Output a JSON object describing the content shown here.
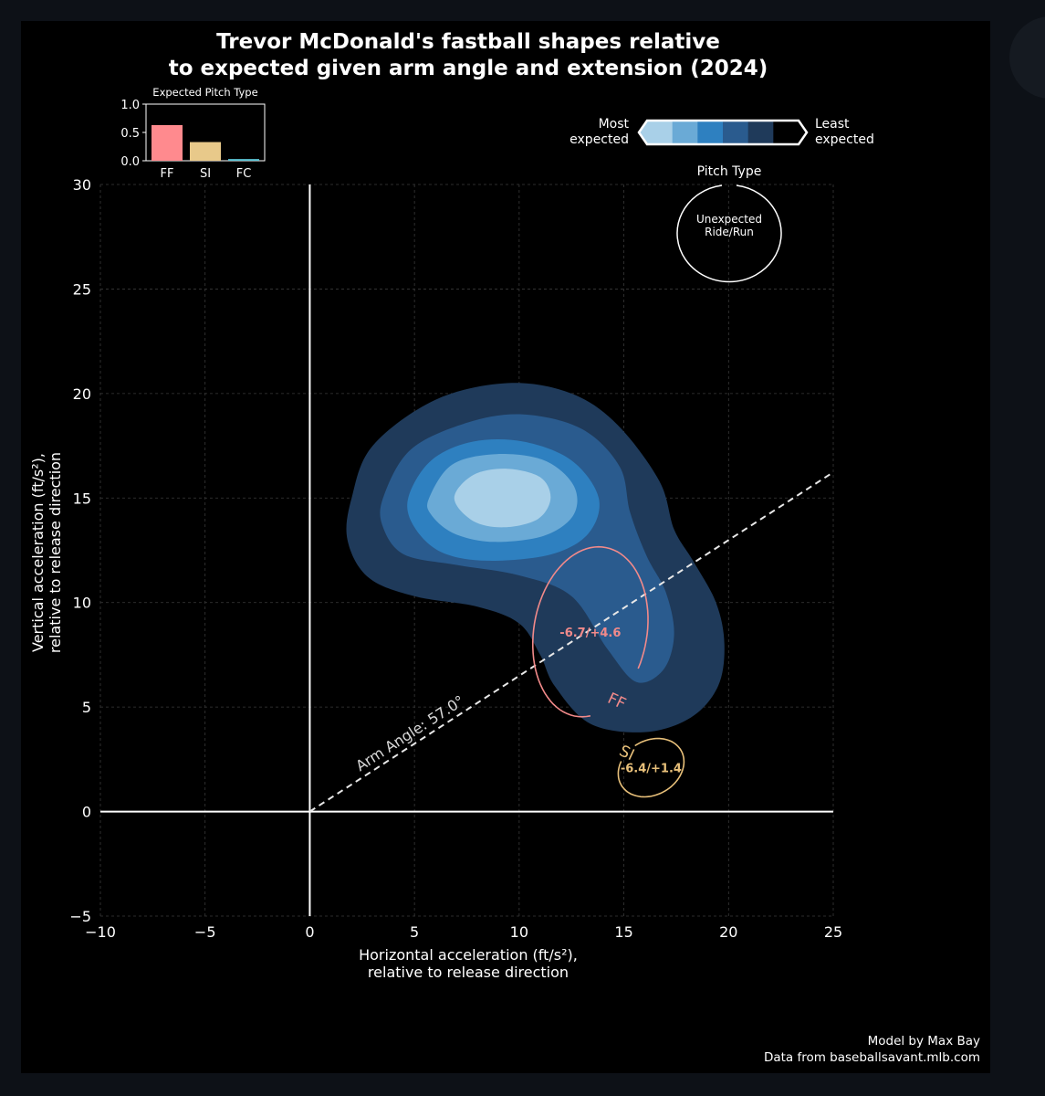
{
  "chart_data": {
    "type": "scatter",
    "title_line1": "Trevor McDonald's fastball shapes relative",
    "title_line2": "to expected given arm angle and extension (2024)",
    "xlabel_line1": "Horizontal acceleration (ft/s²),",
    "xlabel_line2": "relative to release direction",
    "ylabel_line1": "Vertical acceleration (ft/s²),",
    "ylabel_line2": "relative to release direction",
    "xlim": [
      -10,
      25
    ],
    "ylim": [
      -5,
      30
    ],
    "x_ticks": [
      -10,
      -5,
      0,
      5,
      10,
      15,
      20,
      25
    ],
    "y_ticks": [
      -5,
      0,
      5,
      10,
      15,
      20,
      25,
      30
    ],
    "x_tick_labels": [
      "−10",
      "−5",
      "0",
      "5",
      "10",
      "15",
      "20",
      "25"
    ],
    "y_tick_labels": [
      "−5",
      "0",
      "5",
      "10",
      "15",
      "20",
      "25",
      "30"
    ],
    "grid": true,
    "arm_angle_deg": 57.0,
    "arm_angle_label": "Arm Angle: 57.0°",
    "density_contours": [
      {
        "level": 1,
        "color": "#1f3a5a",
        "points": [
          [
            2,
            15
          ],
          [
            3,
            17.5
          ],
          [
            6,
            19.7
          ],
          [
            9.5,
            20.5
          ],
          [
            12.5,
            20
          ],
          [
            14.7,
            18.5
          ],
          [
            16.7,
            15.8
          ],
          [
            17.4,
            13.5
          ],
          [
            18.3,
            12
          ],
          [
            19.4,
            10
          ],
          [
            19.8,
            8
          ],
          [
            19.5,
            6
          ],
          [
            18.2,
            4.5
          ],
          [
            16,
            3.8
          ],
          [
            13.4,
            4.2
          ],
          [
            11.7,
            6
          ],
          [
            11,
            7.5
          ],
          [
            10,
            9
          ],
          [
            8,
            9.8
          ],
          [
            5,
            10.3
          ],
          [
            2.8,
            11.2
          ],
          [
            1.8,
            13
          ]
        ]
      },
      {
        "level": 2,
        "color": "#2a5b8e",
        "points": [
          [
            3.5,
            15
          ],
          [
            4.8,
            17.3
          ],
          [
            7.5,
            18.6
          ],
          [
            10.2,
            19
          ],
          [
            13,
            18.3
          ],
          [
            14.8,
            16.5
          ],
          [
            15.3,
            14.3
          ],
          [
            16.1,
            12.2
          ],
          [
            17,
            10.5
          ],
          [
            17.4,
            8.5
          ],
          [
            16.9,
            6.8
          ],
          [
            15.6,
            6.2
          ],
          [
            14.2,
            7.8
          ],
          [
            12.5,
            10.3
          ],
          [
            10,
            11.3
          ],
          [
            7,
            11.8
          ],
          [
            4.5,
            12.3
          ],
          [
            3.5,
            13.6
          ]
        ]
      },
      {
        "level": 3,
        "color": "#2e80c0",
        "points": [
          [
            4.7,
            15
          ],
          [
            5.8,
            16.8
          ],
          [
            7.8,
            17.7
          ],
          [
            10.2,
            17.7
          ],
          [
            12.5,
            16.8
          ],
          [
            13.8,
            15
          ],
          [
            13.3,
            13.3
          ],
          [
            11.5,
            12.3
          ],
          [
            8.5,
            12
          ],
          [
            6.3,
            12.4
          ],
          [
            5,
            13.6
          ]
        ]
      },
      {
        "level": 4,
        "color": "#6aaad6",
        "points": [
          [
            5.7,
            15
          ],
          [
            6.8,
            16.6
          ],
          [
            8.9,
            17.1
          ],
          [
            11.2,
            16.8
          ],
          [
            12.6,
            15.6
          ],
          [
            12.6,
            14.2
          ],
          [
            11.2,
            13.2
          ],
          [
            8.8,
            12.9
          ],
          [
            6.9,
            13.3
          ],
          [
            5.8,
            14.2
          ]
        ]
      },
      {
        "level": 5,
        "color": "#a9d0e8",
        "points": [
          [
            6.9,
            15
          ],
          [
            7.8,
            16.1
          ],
          [
            9.4,
            16.4
          ],
          [
            11,
            16
          ],
          [
            11.5,
            15
          ],
          [
            10.9,
            14
          ],
          [
            9.3,
            13.6
          ],
          [
            7.8,
            13.9
          ]
        ]
      }
    ],
    "series": [
      {
        "name": "FF",
        "color": "#f28a8a",
        "cx": 13.4,
        "cy": 8.6,
        "value_label": "-6.7/+4.6",
        "rx_deg_width": 5.4,
        "ry_deg_height": 8.2,
        "tilt_deg": 80,
        "gap_start_deg": 110,
        "gap_end_deg": 165
      },
      {
        "name": "SI",
        "color": "#e8c07a",
        "cx": 16.3,
        "cy": 2.1,
        "value_label": "-6.4/+1.4",
        "rx_deg_width": 3.3,
        "ry_deg_height": 2.6,
        "tilt_deg": -60,
        "gap_start_deg": 140,
        "gap_end_deg": 175
      }
    ],
    "inset": {
      "title": "Expected Pitch Type",
      "categories": [
        "FF",
        "SI",
        "FC"
      ],
      "values": [
        0.63,
        0.33,
        0.03
      ],
      "colors": [
        "#ff8a8e",
        "#e8c98a",
        "#5dc8d8"
      ],
      "y_ticks": [
        "0.0",
        "0.5",
        "1.0"
      ]
    },
    "colorbar": {
      "left_label_line1": "Most",
      "left_label_line2": "expected",
      "right_label_line1": "Least",
      "right_label_line2": "expected",
      "colors": [
        "#a9d0e8",
        "#6aaad6",
        "#2e80c0",
        "#2a5b8e",
        "#1f3a5a",
        "#000000"
      ]
    },
    "legend": {
      "title": "Pitch Type",
      "text_line1": "Unexpected",
      "text_line2": "Ride/Run"
    },
    "credit_line1": "Model by Max Bay",
    "credit_line2": "Data from baseballsavant.mlb.com"
  }
}
